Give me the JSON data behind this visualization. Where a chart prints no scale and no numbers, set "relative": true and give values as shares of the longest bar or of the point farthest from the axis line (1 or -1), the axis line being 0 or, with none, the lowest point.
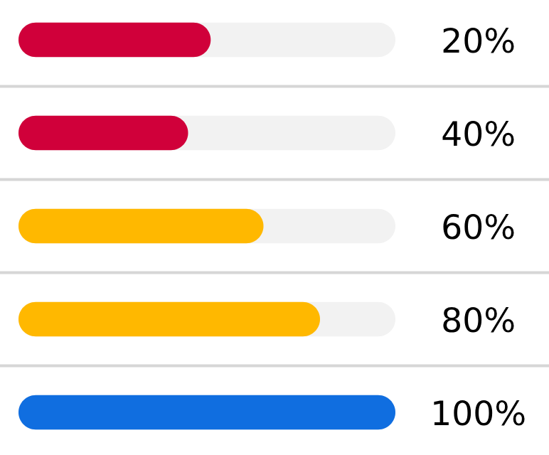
{
  "chart_data": {
    "type": "bar",
    "orientation": "horizontal",
    "relative": true,
    "categories": [
      "20%",
      "40%",
      "60%",
      "80%",
      "100%"
    ],
    "values": [
      0.51,
      0.45,
      0.65,
      0.8,
      1.0
    ],
    "colors": [
      "#d0003a",
      "#d0003a",
      "#ffb800",
      "#ffb800",
      "#106ee0"
    ],
    "grid": false,
    "legend": false
  }
}
